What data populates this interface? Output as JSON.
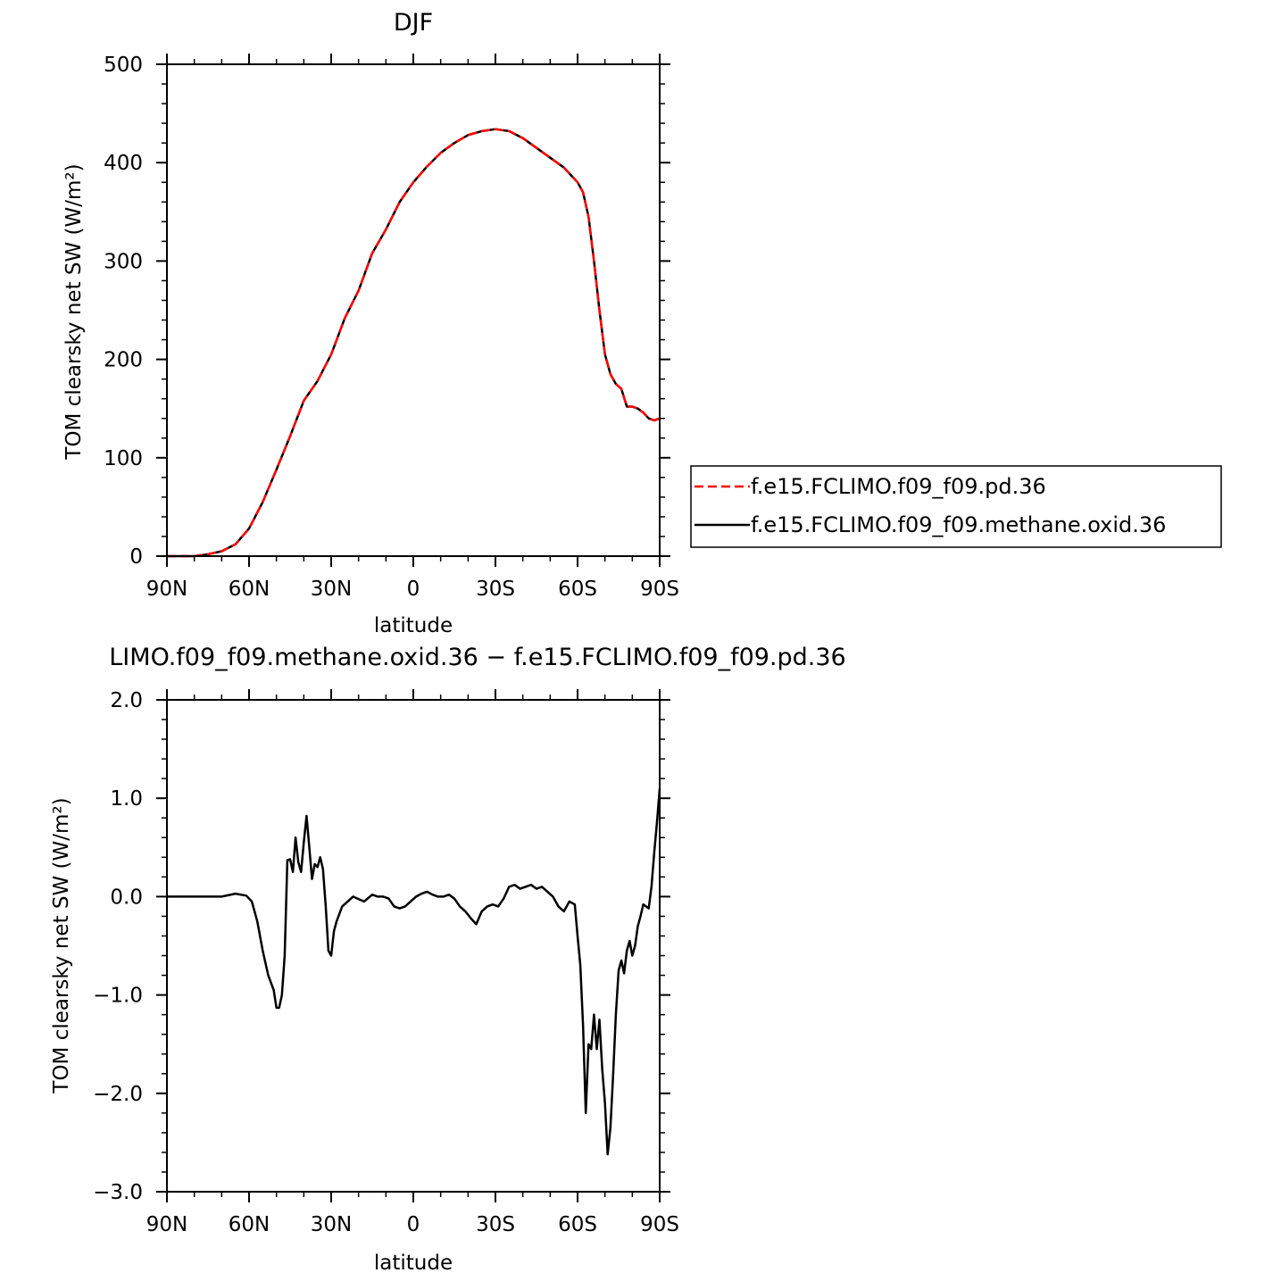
{
  "chart_data": [
    {
      "type": "line",
      "title": "DJF",
      "xlabel": "latitude",
      "ylabel": "TOM clearsky net SW (W/m²)",
      "xlim": [
        -90,
        90
      ],
      "ylim": [
        0,
        500
      ],
      "xticks": [
        -90,
        -60,
        -30,
        0,
        30,
        60,
        90
      ],
      "xticklabels": [
        "90N",
        "60N",
        "30N",
        "0",
        "30S",
        "60S",
        "90S"
      ],
      "yticks": [
        0,
        100,
        200,
        300,
        400,
        500
      ],
      "yticklabels": [
        "0",
        "100",
        "200",
        "300",
        "400",
        "500"
      ],
      "legend_position": "right",
      "series": [
        {
          "name": "f.e15.FCLIMO.f09_f09.pd.36",
          "color": "#ff0000",
          "style": "dashed",
          "x": [
            -90,
            -80,
            -75,
            -70,
            -65,
            -60,
            -55,
            -50,
            -45,
            -40,
            -35,
            -30,
            -25,
            -20,
            -15,
            -10,
            -5,
            0,
            5,
            10,
            15,
            20,
            25,
            30,
            35,
            40,
            45,
            50,
            55,
            60,
            62,
            64,
            66,
            68,
            70,
            72,
            74,
            76,
            78,
            80,
            82,
            84,
            86,
            88,
            90
          ],
          "y": [
            0,
            0,
            2,
            5,
            12,
            28,
            55,
            88,
            122,
            158,
            178,
            205,
            242,
            270,
            308,
            332,
            360,
            380,
            396,
            410,
            420,
            428,
            432,
            434,
            432,
            425,
            415,
            405,
            395,
            380,
            370,
            345,
            300,
            250,
            205,
            185,
            175,
            170,
            152,
            152,
            150,
            146,
            140,
            138,
            140
          ]
        },
        {
          "name": "f.e15.FCLIMO.f09_f09.methane.oxid.36",
          "color": "#000000",
          "style": "solid",
          "x": [
            -90,
            -80,
            -75,
            -70,
            -65,
            -60,
            -55,
            -50,
            -45,
            -40,
            -35,
            -30,
            -25,
            -20,
            -15,
            -10,
            -5,
            0,
            5,
            10,
            15,
            20,
            25,
            30,
            35,
            40,
            45,
            50,
            55,
            60,
            62,
            64,
            66,
            68,
            70,
            72,
            74,
            76,
            78,
            80,
            82,
            84,
            86,
            88,
            90
          ],
          "y": [
            0,
            0,
            2,
            5,
            12,
            28,
            55,
            88,
            122,
            158,
            178,
            205,
            242,
            270,
            308,
            332,
            360,
            380,
            396,
            410,
            420,
            428,
            432,
            434,
            432,
            425,
            415,
            405,
            395,
            380,
            370,
            345,
            300,
            250,
            205,
            185,
            175,
            170,
            152,
            152,
            150,
            146,
            140,
            138,
            140
          ]
        }
      ]
    },
    {
      "type": "line",
      "title": "LIMO.f09_f09.methane.oxid.36 − f.e15.FCLIMO.f09_f09.pd.36",
      "xlabel": "latitude",
      "ylabel": "TOM clearsky net SW (W/m²)",
      "xlim": [
        -90,
        90
      ],
      "ylim": [
        -3,
        2
      ],
      "xticks": [
        -90,
        -60,
        -30,
        0,
        30,
        60,
        90
      ],
      "xticklabels": [
        "90N",
        "60N",
        "30N",
        "0",
        "30S",
        "60S",
        "90S"
      ],
      "yticks": [
        -3,
        -2,
        -1,
        0,
        1,
        2
      ],
      "yticklabels": [
        "−3.0",
        "−2.0",
        "−1.0",
        "0.0",
        "1.0",
        "2.0"
      ],
      "series": [
        {
          "color": "#000000",
          "style": "solid",
          "x": [
            -90,
            -80,
            -70,
            -65,
            -61,
            -59,
            -57,
            -55,
            -53,
            -51,
            -50,
            -49,
            -48,
            -47,
            -46,
            -45,
            -44,
            -43,
            -42,
            -41,
            -40,
            -39,
            -38,
            -37,
            -36,
            -35,
            -34,
            -33,
            -32,
            -31,
            -30,
            -29,
            -28,
            -26,
            -22,
            -18,
            -15,
            -13,
            -11,
            -9,
            -7,
            -5,
            -3,
            -1,
            1,
            3,
            5,
            7,
            9,
            11,
            13,
            15,
            17,
            19,
            21,
            23,
            25,
            27,
            29,
            31,
            33,
            35,
            37,
            39,
            41,
            43,
            45,
            47,
            49,
            51,
            53,
            55,
            57,
            59,
            60,
            61,
            62,
            63,
            64,
            65,
            66,
            67,
            68,
            69,
            70,
            71,
            72,
            73,
            74,
            75,
            76,
            77,
            78,
            79,
            80,
            81,
            82,
            83,
            84,
            85,
            86,
            87,
            88,
            89,
            90
          ],
          "y": [
            0,
            0,
            0,
            0.03,
            0.01,
            -0.05,
            -0.25,
            -0.55,
            -0.8,
            -0.95,
            -1.13,
            -1.13,
            -1.0,
            -0.6,
            0.37,
            0.38,
            0.25,
            0.6,
            0.35,
            0.25,
            0.55,
            0.82,
            0.5,
            0.18,
            0.33,
            0.3,
            0.4,
            0.28,
            -0.1,
            -0.55,
            -0.6,
            -0.35,
            -0.25,
            -0.1,
            0.0,
            -0.05,
            0.02,
            0.0,
            0.0,
            -0.02,
            -0.1,
            -0.12,
            -0.1,
            -0.05,
            0.0,
            0.03,
            0.05,
            0.02,
            0.0,
            0.0,
            0.02,
            -0.02,
            -0.1,
            -0.15,
            -0.22,
            -0.28,
            -0.15,
            -0.1,
            -0.08,
            -0.1,
            -0.02,
            0.1,
            0.12,
            0.08,
            0.1,
            0.12,
            0.08,
            0.1,
            0.05,
            0.0,
            -0.1,
            -0.15,
            -0.05,
            -0.08,
            -0.4,
            -0.7,
            -1.3,
            -2.2,
            -1.5,
            -1.55,
            -1.2,
            -1.55,
            -1.25,
            -1.75,
            -2.1,
            -2.62,
            -2.35,
            -1.8,
            -1.2,
            -0.75,
            -0.65,
            -0.78,
            -0.55,
            -0.45,
            -0.6,
            -0.5,
            -0.3,
            -0.2,
            -0.08,
            -0.1,
            -0.12,
            0.1,
            0.45,
            0.75,
            1.1
          ]
        }
      ]
    }
  ]
}
